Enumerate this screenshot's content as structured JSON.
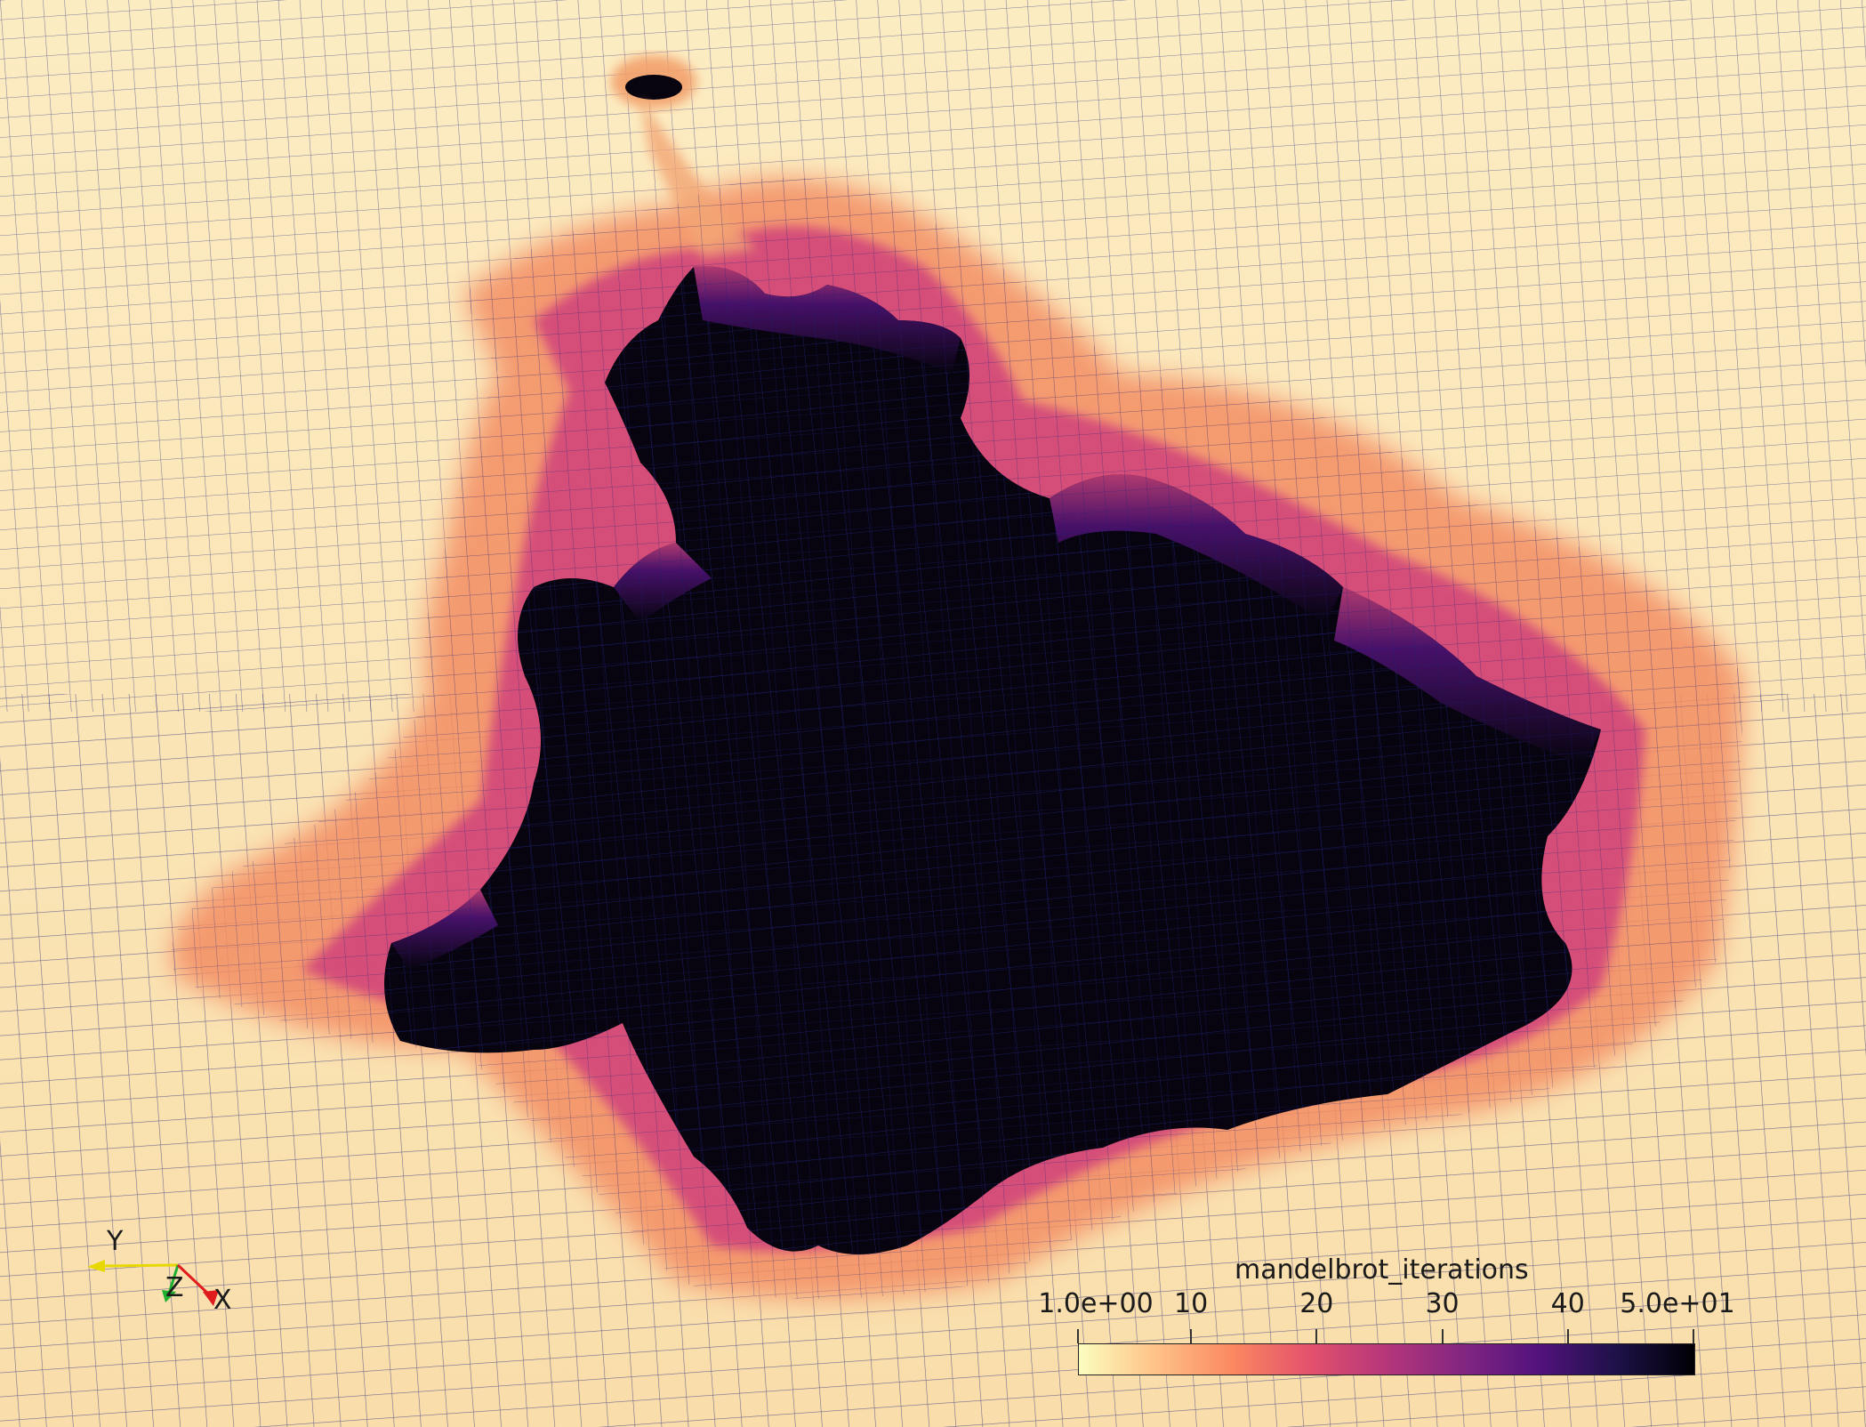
{
  "colors": {
    "plateau": "#fbe7b7",
    "grid_line": "#1c1f7a",
    "pit": "#07040f"
  },
  "colorbar": {
    "title": "mandelbrot_iterations",
    "tick_labels": [
      "1.0e+00",
      "10",
      "20",
      "30",
      "40",
      "5.0e+01"
    ],
    "tick_values": [
      1,
      10,
      20,
      30,
      40,
      50
    ],
    "range": [
      1,
      50
    ],
    "colormap_stops": [
      "#fcfdbf",
      "#fec287",
      "#fb8861",
      "#e3516c",
      "#b5367a",
      "#822681",
      "#51127c",
      "#1d1147",
      "#000004"
    ]
  },
  "axes": {
    "y_label": "Y",
    "z_label": "Z",
    "x_label": "X",
    "y_color": "#e6d800",
    "z_color": "#1fb030",
    "x_color": "#e01c1c"
  }
}
